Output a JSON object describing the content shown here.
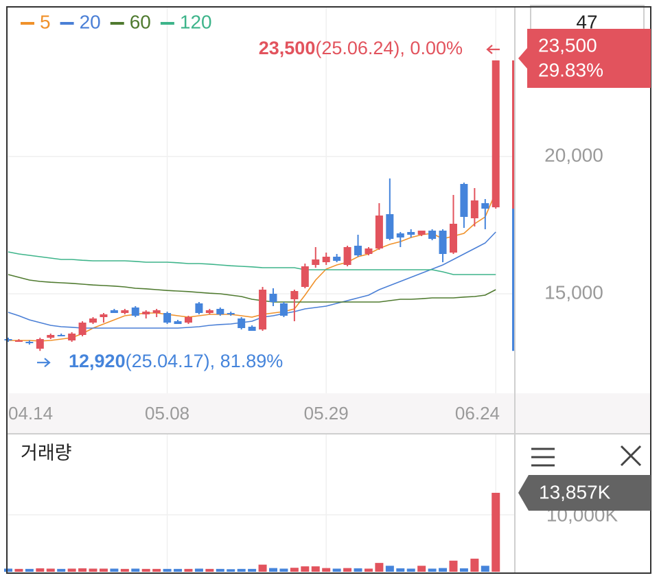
{
  "chart_data": [
    {
      "type": "candlestick",
      "categories": [
        "04.14",
        null,
        null,
        null,
        null,
        null,
        null,
        null,
        null,
        null,
        null,
        null,
        null,
        null,
        null,
        "05.08",
        null,
        null,
        null,
        null,
        null,
        null,
        null,
        null,
        null,
        null,
        null,
        null,
        null,
        null,
        "05.29",
        null,
        null,
        null,
        null,
        null,
        null,
        null,
        null,
        null,
        null,
        null,
        null,
        null,
        null,
        null,
        "06.24"
      ],
      "open": [
        13350,
        13300,
        13250,
        13000,
        13400,
        13500,
        13300,
        13500,
        13950,
        14150,
        14400,
        14300,
        14500,
        14250,
        14300,
        14300,
        14000,
        13950,
        14650,
        14300,
        14450,
        14300,
        14100,
        13800,
        13700,
        15000,
        14650,
        14800,
        15250,
        16050,
        16150,
        16350,
        16050,
        16750,
        16450,
        16650,
        17900,
        17200,
        17250,
        17150,
        17300,
        17300,
        16500,
        19000,
        17750,
        18300,
        18150
      ],
      "high": [
        13400,
        13350,
        13300,
        13400,
        13550,
        13550,
        13600,
        14000,
        14150,
        14300,
        14450,
        14450,
        14550,
        14400,
        14450,
        14350,
        14050,
        14200,
        14700,
        14450,
        14500,
        14350,
        14150,
        13850,
        15250,
        15200,
        14700,
        15150,
        16100,
        16700,
        16500,
        16450,
        16750,
        17150,
        16700,
        18300,
        19200,
        17250,
        17350,
        17300,
        17350,
        17350,
        18600,
        19050,
        18850,
        18450,
        23500
      ],
      "low": [
        13250,
        13250,
        13150,
        12920,
        13350,
        13450,
        13250,
        13450,
        13900,
        13950,
        14300,
        14250,
        14150,
        14100,
        14150,
        13900,
        13900,
        13900,
        14250,
        14250,
        14200,
        14200,
        13700,
        13650,
        13650,
        14550,
        14150,
        14000,
        15200,
        15950,
        16050,
        16150,
        16000,
        16350,
        16400,
        16600,
        16950,
        16700,
        17050,
        17100,
        16950,
        16150,
        16450,
        17400,
        17450,
        17350,
        18100
      ],
      "close": [
        13300,
        13300,
        13200,
        13350,
        13500,
        13450,
        13550,
        13950,
        14100,
        14250,
        14300,
        14400,
        14200,
        14350,
        14400,
        13950,
        13900,
        14150,
        14300,
        14400,
        14250,
        14250,
        13750,
        13650,
        15150,
        14700,
        14200,
        15100,
        16000,
        16250,
        16350,
        16200,
        16700,
        16400,
        16650,
        17850,
        17000,
        17050,
        17150,
        17300,
        17000,
        16450,
        17550,
        17800,
        18400,
        18100,
        23500
      ],
      "up_color": "#e2535d",
      "down_color": "#4584db",
      "series": [
        {
          "name": "5",
          "color": "#f0912a",
          "values": [
            13300,
            13300,
            13300,
            13280,
            13300,
            13350,
            13400,
            13550,
            13750,
            13900,
            14050,
            14200,
            14250,
            14300,
            14300,
            14250,
            14200,
            14150,
            14200,
            14250,
            14250,
            14250,
            14200,
            14150,
            14250,
            14300,
            14350,
            14450,
            14950,
            15500,
            15900,
            16050,
            16150,
            16350,
            16450,
            16650,
            16800,
            16900,
            17050,
            17150,
            17200,
            17000,
            17100,
            17200,
            17550,
            17800,
            18700
          ]
        },
        {
          "name": "20",
          "color": "#4a7fd6",
          "values": [
            14325,
            14200,
            14050,
            13950,
            13850,
            13800,
            13780,
            13750,
            13750,
            13750,
            13750,
            13750,
            13750,
            13750,
            13750,
            13750,
            13750,
            13775,
            13800,
            13850,
            13880,
            13900,
            13950,
            14000,
            14150,
            14200,
            14280,
            14350,
            14450,
            14500,
            14550,
            14650,
            14750,
            14850,
            14950,
            15150,
            15300,
            15450,
            15600,
            15750,
            15900,
            16050,
            16250,
            16450,
            16650,
            16850,
            17250
          ]
        },
        {
          "name": "60",
          "color": "#4f7a2f",
          "values": [
            15700,
            15600,
            15500,
            15450,
            15420,
            15400,
            15380,
            15350,
            15320,
            15300,
            15280,
            15250,
            15200,
            15180,
            15150,
            15120,
            15100,
            15080,
            15050,
            15020,
            15000,
            14950,
            14900,
            14800,
            14750,
            14700,
            14700,
            14700,
            14700,
            14700,
            14700,
            14700,
            14700,
            14700,
            14700,
            14700,
            14750,
            14800,
            14800,
            14820,
            14850,
            14850,
            14850,
            14880,
            14900,
            14950,
            15150
          ]
        },
        {
          "name": "120",
          "color": "#3db48a",
          "values": [
            16525,
            16450,
            16400,
            16350,
            16300,
            16250,
            16250,
            16220,
            16200,
            16200,
            16200,
            16200,
            16180,
            16150,
            16150,
            16150,
            16130,
            16100,
            16100,
            16080,
            16050,
            16020,
            16000,
            15980,
            15950,
            15950,
            15950,
            15950,
            15875,
            15875,
            15875,
            15875,
            15875,
            15875,
            15875,
            15875,
            15875,
            15875,
            15875,
            15875,
            15875,
            15800,
            15700,
            15700,
            15700,
            15700,
            15700
          ]
        }
      ],
      "ylim": [
        11375,
        25450
      ],
      "yticks": [
        {
          "value": 15000,
          "label": "15,000"
        },
        {
          "value": 20000,
          "label": "20,000"
        }
      ],
      "grid": true,
      "annotations": {
        "high": {
          "value": 23500,
          "label": "23,500",
          "note": "(25.06.24), 0.00%"
        },
        "low": {
          "value": 12920,
          "label": "12,920",
          "note": "(25.04.17), 81.89%"
        }
      },
      "price_tag": {
        "value": 23500,
        "label": "23,500",
        "change": "29.83%"
      },
      "corner_label": "47"
    },
    {
      "type": "bar",
      "title": "거래량",
      "values": [
        550,
        500,
        500,
        600,
        550,
        500,
        550,
        600,
        550,
        550,
        550,
        500,
        550,
        500,
        500,
        500,
        500,
        500,
        550,
        500,
        500,
        450,
        500,
        500,
        1250,
        650,
        550,
        700,
        950,
        950,
        650,
        550,
        650,
        600,
        550,
        1550,
        1050,
        600,
        550,
        1050,
        550,
        650,
        1950,
        600,
        2300,
        1050,
        13857
      ],
      "ylim": [
        0,
        23250
      ],
      "yticks": [
        {
          "value": 10000,
          "label": "10,000K"
        }
      ],
      "grid": true,
      "tag": {
        "value": 13857,
        "label": "13,857K"
      }
    }
  ]
}
